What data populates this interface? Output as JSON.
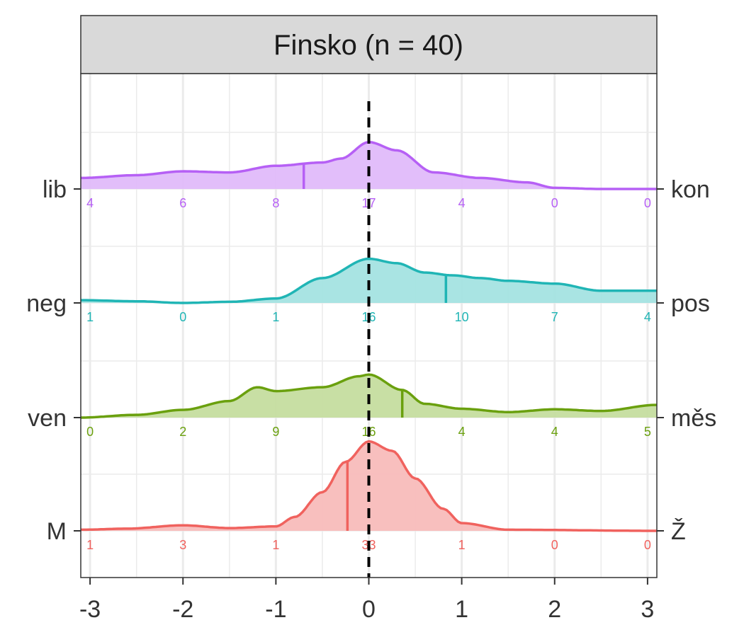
{
  "chart_data": {
    "type": "ridgeline-density",
    "title": "Finsko (n = 40)",
    "xlim": [
      -3.1,
      3.1
    ],
    "x_ticks": [
      -3,
      -2,
      -1,
      0,
      1,
      2,
      3
    ],
    "x_tick_labels": [
      "-3",
      "-2",
      "-1",
      "0",
      "1",
      "2",
      "3"
    ],
    "reference_line_x": 0,
    "grid": true,
    "series": [
      {
        "left_label": "M",
        "right_label": "Ž",
        "color": "#F0625E",
        "fill": "#F8BCBA",
        "mean": -0.23,
        "counts": [
          1,
          3,
          1,
          33,
          1,
          0,
          0
        ],
        "density": [
          [
            -3.1,
            0.02
          ],
          [
            -2.6,
            0.04
          ],
          [
            -2.0,
            0.1
          ],
          [
            -1.5,
            0.05
          ],
          [
            -1.0,
            0.08
          ],
          [
            -0.8,
            0.25
          ],
          [
            -0.5,
            0.7
          ],
          [
            -0.25,
            1.25
          ],
          [
            0.0,
            1.62
          ],
          [
            0.25,
            1.45
          ],
          [
            0.5,
            0.95
          ],
          [
            0.8,
            0.4
          ],
          [
            1.0,
            0.14
          ],
          [
            1.5,
            0.02
          ],
          [
            3.1,
            0.0
          ]
        ]
      },
      {
        "left_label": "ven",
        "right_label": "měs",
        "color": "#6AA00E",
        "fill": "#C5DD9F",
        "mean": 0.36,
        "counts": [
          0,
          2,
          9,
          16,
          4,
          4,
          5
        ],
        "density": [
          [
            -3.1,
            0.0
          ],
          [
            -2.5,
            0.05
          ],
          [
            -2.0,
            0.14
          ],
          [
            -1.5,
            0.3
          ],
          [
            -1.2,
            0.55
          ],
          [
            -1.0,
            0.48
          ],
          [
            -0.5,
            0.55
          ],
          [
            -0.1,
            0.75
          ],
          [
            0.0,
            0.78
          ],
          [
            0.36,
            0.5
          ],
          [
            0.6,
            0.25
          ],
          [
            1.0,
            0.16
          ],
          [
            1.5,
            0.1
          ],
          [
            2.0,
            0.15
          ],
          [
            2.5,
            0.12
          ],
          [
            3.1,
            0.23
          ]
        ]
      },
      {
        "left_label": "neg",
        "right_label": "pos",
        "color": "#20B5B5",
        "fill": "#A4E3E2",
        "mean": 0.83,
        "counts": [
          1,
          0,
          1,
          16,
          10,
          7,
          4
        ],
        "density": [
          [
            -3.1,
            0.05
          ],
          [
            -2.5,
            0.03
          ],
          [
            -2.0,
            0.0
          ],
          [
            -1.5,
            0.02
          ],
          [
            -1.0,
            0.08
          ],
          [
            -0.5,
            0.45
          ],
          [
            0.0,
            0.8
          ],
          [
            0.3,
            0.72
          ],
          [
            0.6,
            0.55
          ],
          [
            0.9,
            0.5
          ],
          [
            1.2,
            0.45
          ],
          [
            1.5,
            0.4
          ],
          [
            2.0,
            0.35
          ],
          [
            2.5,
            0.22
          ],
          [
            3.1,
            0.22
          ]
        ]
      },
      {
        "left_label": "lib",
        "right_label": "kon",
        "color": "#B660F5",
        "fill": "#E0BBFA",
        "mean": -0.7,
        "counts": [
          4,
          6,
          8,
          17,
          4,
          0,
          0
        ],
        "density": [
          [
            -3.1,
            0.2
          ],
          [
            -2.5,
            0.25
          ],
          [
            -2.0,
            0.32
          ],
          [
            -1.5,
            0.3
          ],
          [
            -1.0,
            0.42
          ],
          [
            -0.5,
            0.48
          ],
          [
            -0.3,
            0.55
          ],
          [
            0.0,
            0.85
          ],
          [
            0.3,
            0.7
          ],
          [
            0.7,
            0.3
          ],
          [
            1.2,
            0.2
          ],
          [
            1.7,
            0.12
          ],
          [
            2.0,
            0.02
          ],
          [
            2.5,
            0.0
          ],
          [
            3.1,
            0.0
          ]
        ]
      }
    ]
  }
}
